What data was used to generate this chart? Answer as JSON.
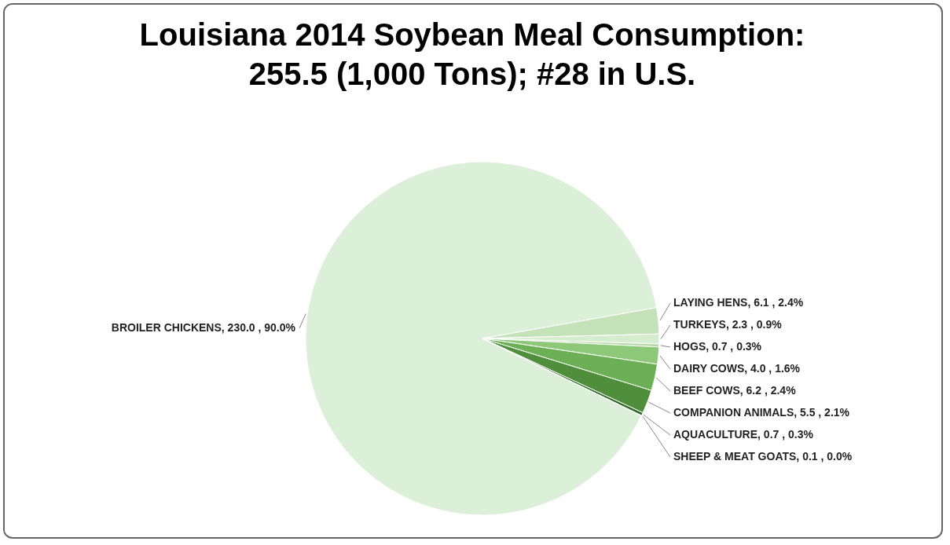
{
  "chart_data": {
    "type": "pie",
    "title": "Louisiana 2014 Soybean Meal Consumption:",
    "subtitle": "255.5 (1,000 Tons); #28 in U.S.",
    "categories": [
      "BROILER CHICKENS",
      "LAYING HENS",
      "TURKEYS",
      "HOGS",
      "DAIRY COWS",
      "BEEF COWS",
      "COMPANION ANIMALS",
      "AQUACULTURE",
      "SHEEP & MEAT GOATS"
    ],
    "values": [
      230.0,
      6.1,
      2.3,
      0.7,
      4.0,
      6.2,
      5.5,
      0.7,
      0.1
    ],
    "value_labels": [
      "230.0 , 90.0%",
      "6.1 , 2.4%",
      "2.3 , 0.9%",
      "0.7 , 0.3%",
      "4.0 , 1.6%",
      "6.2 , 2.4%",
      "5.5 , 2.1%",
      "0.7 , 0.3%",
      "0.1 , 0.0%"
    ],
    "colors": [
      "#dcefd8",
      "#c3e2b8",
      "#d5ecce",
      "#b4d9a6",
      "#8cc878",
      "#6cb055",
      "#4f8f3c",
      "#2f6a24",
      "#1e4a18"
    ]
  }
}
